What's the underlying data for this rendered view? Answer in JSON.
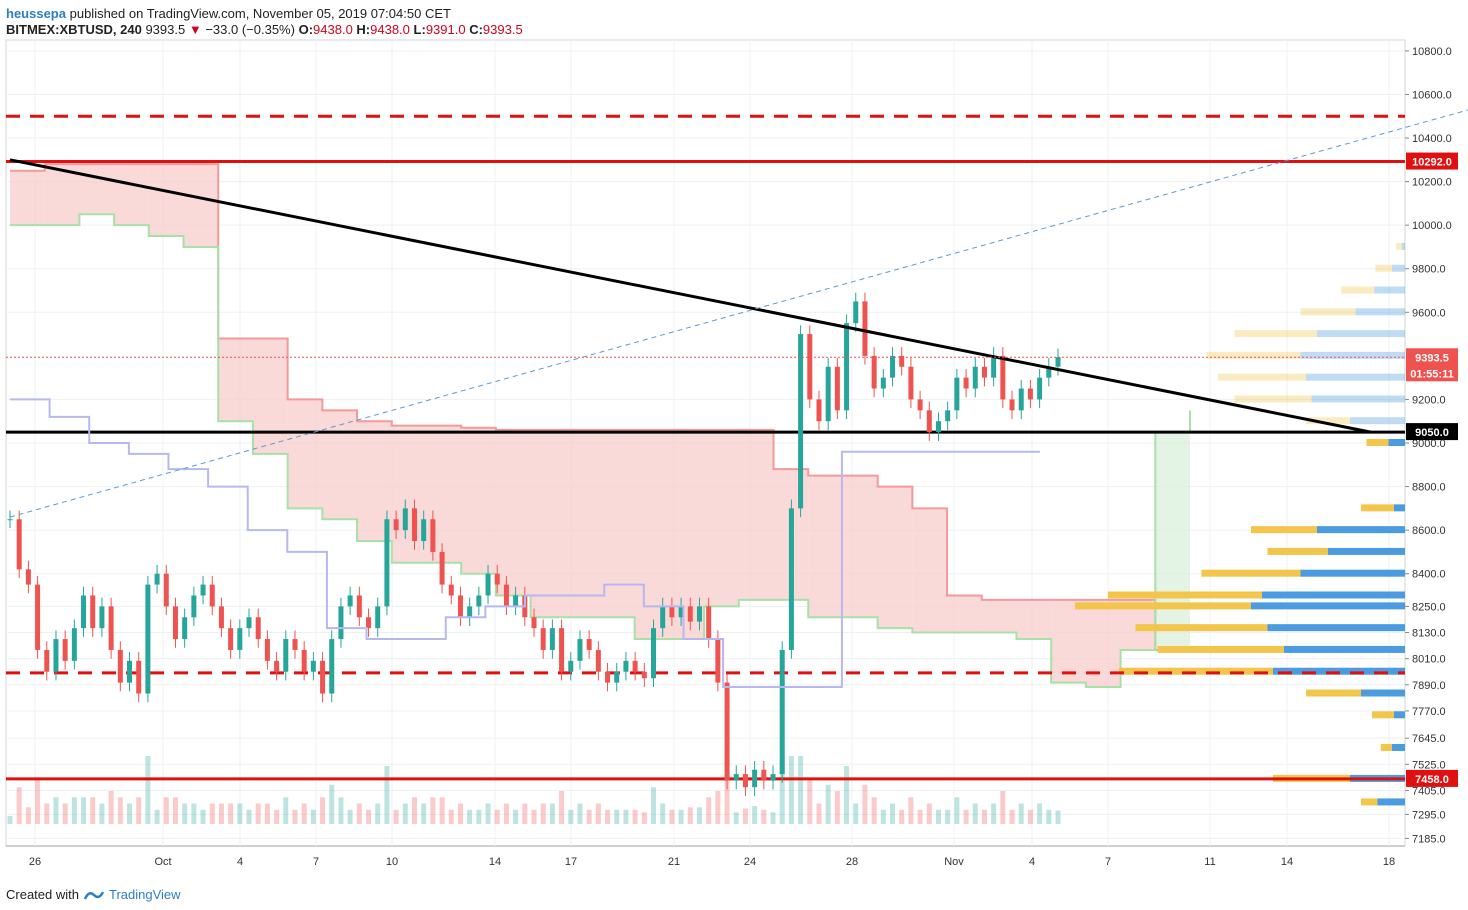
{
  "header": {
    "user": "heussepa",
    "published_text": "published on TradingView.com, November 05, 2019 07:04:50 CET",
    "symbol": "BITMEX:XBTUSD, 240",
    "last": "9393.5",
    "change_arrow": "▼",
    "change": "−33.0 (−0.35%)",
    "o_label": "O:",
    "o_value": "9438.0",
    "h_label": "H:",
    "h_value": "9438.0",
    "l_label": "L:",
    "l_value": "9391.0",
    "c_label": "C:",
    "c_value": "9393.5"
  },
  "footer": {
    "created_with": "Created with",
    "brand": "TradingView"
  },
  "colors": {
    "up": "#26a69a",
    "down": "#ef5350",
    "level_red": "#e01010",
    "cloud_red": "#f8c9c9",
    "cloud_green": "#d8f0d8",
    "vp_blue": "#4a9be0",
    "vp_orange": "#f3c54a"
  },
  "chart_data": {
    "type": "candlestick",
    "symbol": "BITMEX:XBTUSD",
    "timeframe": "240",
    "ylim": [
      7150,
      10850
    ],
    "y_ticks": [
      10800.0,
      10600.0,
      10400.0,
      10200.0,
      10000.0,
      9800.0,
      9600.0,
      9200.0,
      9000.0,
      8800.0,
      8600.0,
      8400.0,
      8250.0,
      8130.0,
      8010.0,
      7890.0,
      7770.0,
      7645.0,
      7525.0,
      7405.0,
      7295.0,
      7185.0
    ],
    "x_ticks": [
      "26",
      "Oct",
      "4",
      "7",
      "10",
      "14",
      "17",
      "21",
      "24",
      "28",
      "Nov",
      "4",
      "7",
      "11",
      "14",
      "18"
    ],
    "price_labels": [
      {
        "text": "10292.0",
        "value": 10292,
        "color": "#e01010"
      },
      {
        "text": "9393.5",
        "value": 9393.5,
        "color": "#ef5350"
      },
      {
        "text": "01:55:11",
        "value": 9320,
        "color": "#ef5350"
      },
      {
        "text": "9050.0",
        "value": 9050,
        "color": "#000000"
      },
      {
        "text": "7458.0",
        "value": 7458,
        "color": "#e01010"
      }
    ],
    "horizontal_levels": [
      {
        "value": 10500,
        "style": "dashed",
        "color": "#e01010"
      },
      {
        "value": 10292,
        "style": "solid",
        "color": "#e01010"
      },
      {
        "value": 9050,
        "style": "solid",
        "color": "#000000"
      },
      {
        "value": 7945,
        "style": "dashed",
        "color": "#e01010"
      },
      {
        "value": 7458,
        "style": "solid",
        "color": "#e01010"
      }
    ],
    "trendlines": [
      {
        "from": [
          0,
          10300
        ],
        "to": [
          148,
          9050
        ],
        "color": "#000000",
        "style": "solid"
      },
      {
        "from": [
          0,
          8660
        ],
        "to": [
          185,
          10840
        ],
        "color": "#5b9bd5",
        "style": "dashed"
      }
    ],
    "close_series": [
      8650,
      8420,
      8350,
      8050,
      7950,
      8100,
      8000,
      8150,
      8300,
      8150,
      8250,
      8050,
      7900,
      8000,
      7850,
      8350,
      8400,
      8250,
      8100,
      8200,
      8300,
      8350,
      8250,
      8150,
      8050,
      8150,
      8200,
      8100,
      8000,
      7950,
      8100,
      8050,
      7950,
      8000,
      7850,
      8100,
      8250,
      8300,
      8200,
      8150,
      8250,
      8650,
      8600,
      8700,
      8550,
      8650,
      8500,
      8350,
      8300,
      8200,
      8250,
      8300,
      8400,
      8350,
      8250,
      8300,
      8200,
      8150,
      8050,
      8150,
      7950,
      8000,
      8100,
      8050,
      7950,
      7900,
      7950,
      8000,
      7950,
      7920,
      8150,
      8250,
      8200,
      8250,
      8180,
      8250,
      8100,
      7900,
      7450,
      7480,
      7420,
      7500,
      7450,
      7480,
      8050,
      8700,
      9500,
      9200,
      9100,
      9350,
      9150,
      9550,
      9650,
      9400,
      9250,
      9300,
      9400,
      9350,
      9200,
      9150,
      9050,
      9100,
      9150,
      9300,
      9250,
      9350,
      9300,
      9400,
      9200,
      9150,
      9250,
      9200,
      9300,
      9350,
      9394
    ],
    "ichimoku": {
      "senkou_a": [
        10250,
        10280,
        10280,
        10280,
        10280,
        10280,
        9480,
        9480,
        9200,
        9150,
        9100,
        9080,
        9080,
        9070,
        9060,
        9060,
        9060,
        9060,
        9060,
        9060,
        9060,
        9060,
        8880,
        8850,
        8850,
        8800,
        8700,
        8300,
        8280,
        8280,
        8280,
        8280,
        8280,
        8050,
        8050
      ],
      "senkou_b": [
        10000,
        10000,
        10050,
        10000,
        9950,
        9900,
        9100,
        8950,
        8700,
        8650,
        8550,
        8450,
        8450,
        8400,
        8300,
        8200,
        8200,
        8200,
        8100,
        8100,
        8250,
        8280,
        8280,
        8200,
        8200,
        8150,
        8130,
        8130,
        8130,
        8100,
        7900,
        7880,
        8050,
        9050,
        9150
      ],
      "kijun": [
        9200,
        9120,
        9000,
        8950,
        8880,
        8800,
        8600,
        8500,
        8150,
        8100,
        8100,
        8200,
        8250,
        8300,
        8300,
        8350,
        8250,
        8100,
        7880,
        7880,
        7880,
        8960,
        8960,
        8960,
        8960,
        8960,
        8960
      ]
    },
    "volume_profile": [
      {
        "price": 9900,
        "buy": 5,
        "sell": 3
      },
      {
        "price": 9800,
        "buy": 15,
        "sell": 12
      },
      {
        "price": 9700,
        "buy": 30,
        "sell": 28
      },
      {
        "price": 9600,
        "buy": 50,
        "sell": 45
      },
      {
        "price": 9500,
        "buy": 75,
        "sell": 80
      },
      {
        "price": 9400,
        "buy": 85,
        "sell": 95
      },
      {
        "price": 9300,
        "buy": 80,
        "sell": 90
      },
      {
        "price": 9200,
        "buy": 70,
        "sell": 85
      },
      {
        "price": 9100,
        "buy": 40,
        "sell": 50
      },
      {
        "price": 9000,
        "buy": 20,
        "sell": 15
      },
      {
        "price": 8700,
        "buy": 30,
        "sell": 10
      },
      {
        "price": 8600,
        "buy": 60,
        "sell": 80
      },
      {
        "price": 8500,
        "buy": 55,
        "sell": 70
      },
      {
        "price": 8400,
        "buy": 90,
        "sell": 95
      },
      {
        "price": 8300,
        "buy": 140,
        "sell": 130
      },
      {
        "price": 8250,
        "buy": 160,
        "sell": 140
      },
      {
        "price": 8150,
        "buy": 120,
        "sell": 125
      },
      {
        "price": 8050,
        "buy": 115,
        "sell": 110
      },
      {
        "price": 7950,
        "buy": 140,
        "sell": 120
      },
      {
        "price": 7850,
        "buy": 50,
        "sell": 40
      },
      {
        "price": 7750,
        "buy": 20,
        "sell": 10
      },
      {
        "price": 7600,
        "buy": 10,
        "sell": 12
      },
      {
        "price": 7458,
        "buy": 70,
        "sell": 50
      },
      {
        "price": 7350,
        "buy": 15,
        "sell": 25
      }
    ]
  }
}
